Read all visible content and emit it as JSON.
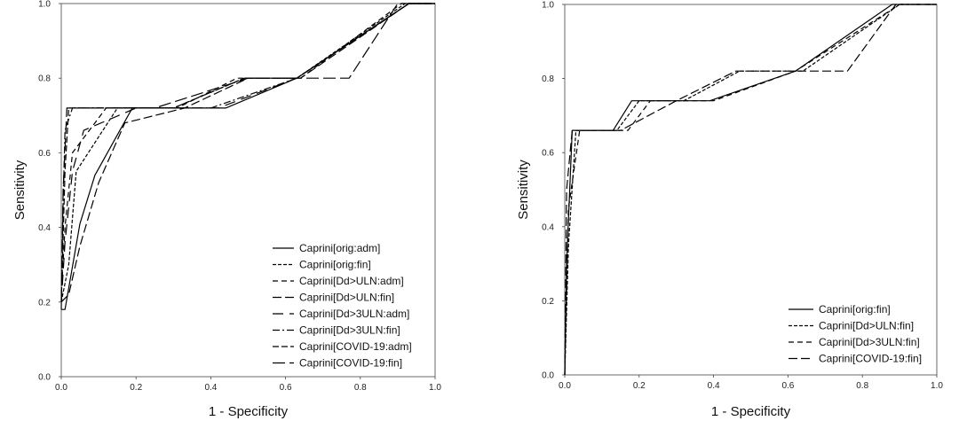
{
  "chart_data": [
    {
      "type": "line",
      "panel": "left",
      "xlabel": "1 - Specificity",
      "ylabel": "Sensitivity",
      "xlim": [
        0,
        1
      ],
      "ylim": [
        0,
        1
      ],
      "xticks": [
        "0.0",
        "0.2",
        "0.4",
        "0.6",
        "0.8",
        "1.0"
      ],
      "yticks": [
        "0.0",
        "0.2",
        "0.4",
        "0.6",
        "0.8",
        "1.0"
      ],
      "legend_position": "bottom-right",
      "series": [
        {
          "name": "Caprini[orig:adm]",
          "dash": "solid",
          "color": "#000000",
          "x": [
            0,
            0.01,
            0.05,
            0.09,
            0.19,
            0.44,
            0.63,
            0.93,
            1.0
          ],
          "y": [
            0.18,
            0.18,
            0.41,
            0.54,
            0.72,
            0.72,
            0.8,
            1.0,
            1.0
          ]
        },
        {
          "name": "Caprini[orig:fin]",
          "dash": "short",
          "color": "#000000",
          "x": [
            0,
            0.02,
            0.04,
            0.15,
            0.3,
            0.49,
            0.63,
            0.92,
            1.0
          ],
          "y": [
            0.2,
            0.3,
            0.55,
            0.72,
            0.72,
            0.8,
            0.8,
            1.0,
            1.0
          ]
        },
        {
          "name": "Caprini[Dd>ULN:adm]",
          "dash": "medium",
          "color": "#000000",
          "x": [
            0,
            0.01,
            0.03,
            0.12,
            0.31,
            0.47,
            0.64,
            0.91,
            1.0
          ],
          "y": [
            0.22,
            0.4,
            0.6,
            0.72,
            0.72,
            0.8,
            0.8,
            1.0,
            1.0
          ]
        },
        {
          "name": "Caprini[Dd>ULN:fin]",
          "dash": "long",
          "color": "#000000",
          "x": [
            0,
            0.02,
            0.05,
            0.1,
            0.17,
            0.33,
            0.5,
            0.64,
            0.93,
            1.0
          ],
          "y": [
            0.2,
            0.22,
            0.35,
            0.52,
            0.68,
            0.72,
            0.8,
            0.8,
            1.0,
            1.0
          ]
        },
        {
          "name": "Caprini[Dd>3ULN:adm]",
          "dash": "longgap",
          "color": "#000000",
          "x": [
            0,
            0.01,
            0.03,
            0.06,
            0.2,
            0.42,
            0.63,
            0.93,
            1.0
          ],
          "y": [
            0.2,
            0.36,
            0.55,
            0.66,
            0.72,
            0.72,
            0.8,
            1.0,
            1.0
          ]
        },
        {
          "name": "Caprini[Dd>3ULN:fin]",
          "dash": "dashdot",
          "color": "#000000",
          "x": [
            0,
            0.005,
            0.01,
            0.03,
            0.2,
            0.4,
            0.63,
            0.93,
            1.0
          ],
          "y": [
            0.18,
            0.47,
            0.66,
            0.72,
            0.72,
            0.72,
            0.8,
            1.0,
            1.0
          ]
        },
        {
          "name": "Caprini[COVID-19:adm]",
          "dash": "dashlong",
          "color": "#000000",
          "x": [
            0,
            0.01,
            0.02,
            0.05,
            0.3,
            0.49,
            0.63,
            0.93,
            1.0
          ],
          "y": [
            0.2,
            0.55,
            0.72,
            0.72,
            0.72,
            0.8,
            0.8,
            1.0,
            1.0
          ]
        },
        {
          "name": "Caprini[COVID-19:fin]",
          "dash": "verylong",
          "color": "#000000",
          "x": [
            0,
            0.005,
            0.015,
            0.03,
            0.25,
            0.5,
            0.77,
            0.9,
            1.0
          ],
          "y": [
            0.2,
            0.5,
            0.72,
            0.72,
            0.72,
            0.8,
            0.8,
            1.0,
            1.0
          ]
        }
      ]
    },
    {
      "type": "line",
      "panel": "right",
      "xlabel": "1 - Specificity",
      "ylabel": "Sensitivity",
      "xlim": [
        0,
        1
      ],
      "ylim": [
        0,
        1
      ],
      "xticks": [
        "0.0",
        "0.2",
        "0.4",
        "0.6",
        "0.8",
        "1.0"
      ],
      "yticks": [
        "0.0",
        "0.2",
        "0.4",
        "0.6",
        "0.8",
        "1.0"
      ],
      "legend_position": "bottom-right",
      "series": [
        {
          "name": "Caprini[orig:fin]",
          "dash": "solid",
          "color": "#000000",
          "x": [
            0,
            0.005,
            0.02,
            0.13,
            0.18,
            0.39,
            0.62,
            0.88,
            1.0
          ],
          "y": [
            0,
            0.3,
            0.66,
            0.66,
            0.74,
            0.74,
            0.82,
            1.0,
            1.0
          ]
        },
        {
          "name": "Caprini[Dd>ULN:fin]",
          "dash": "short",
          "color": "#000000",
          "x": [
            0,
            0.01,
            0.03,
            0.14,
            0.2,
            0.32,
            0.47,
            0.64,
            0.9,
            1.0
          ],
          "y": [
            0,
            0.35,
            0.66,
            0.66,
            0.74,
            0.74,
            0.82,
            0.82,
            1.0,
            1.0
          ]
        },
        {
          "name": "Caprini[Dd>3ULN:fin]",
          "dash": "medium",
          "color": "#000000",
          "x": [
            0,
            0.01,
            0.04,
            0.17,
            0.23,
            0.4,
            0.62,
            0.9,
            1.0
          ],
          "y": [
            0,
            0.45,
            0.66,
            0.66,
            0.74,
            0.74,
            0.82,
            1.0,
            1.0
          ]
        },
        {
          "name": "Caprini[COVID-19:fin]",
          "dash": "long",
          "color": "#000000",
          "x": [
            0,
            0.005,
            0.02,
            0.15,
            0.3,
            0.46,
            0.76,
            0.89,
            1.0
          ],
          "y": [
            0,
            0.5,
            0.66,
            0.66,
            0.74,
            0.82,
            0.82,
            1.0,
            1.0
          ]
        }
      ]
    }
  ]
}
